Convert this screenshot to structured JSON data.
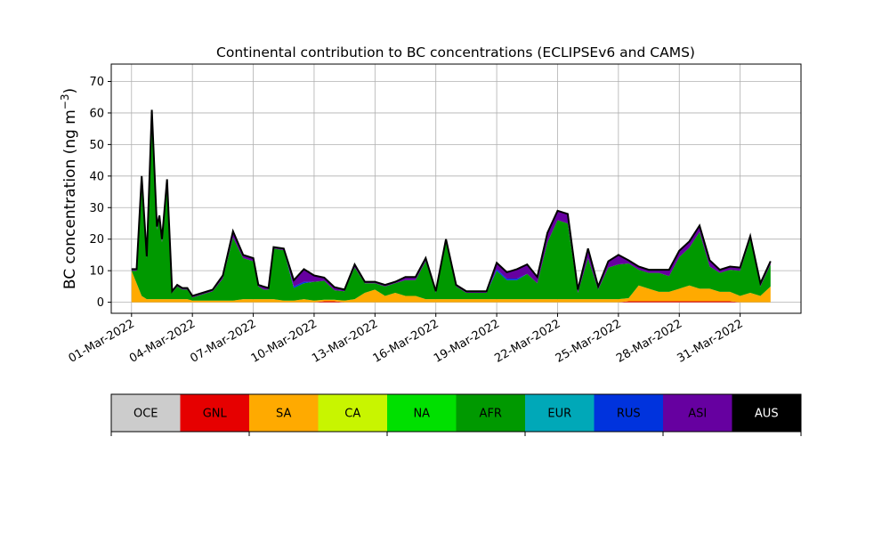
{
  "chart_data": {
    "type": "area",
    "title": "Continental contribution to BC concentrations (ECLIPSEv6 and CAMS)",
    "ylabel": "BC concentration (ng m",
    "ylabel_sup": "−3",
    "ylabel_close": ")",
    "xlabel": "",
    "ylim": [
      -3.5,
      75.5
    ],
    "yticks": [
      0,
      10,
      20,
      30,
      40,
      50,
      60,
      70
    ],
    "xlim": [
      "2022-02-28T00:00",
      "2022-04-03T00:00"
    ],
    "xticks": [
      {
        "date": "2022-03-01",
        "label": "01-Mar-2022"
      },
      {
        "date": "2022-03-04",
        "label": "04-Mar-2022"
      },
      {
        "date": "2022-03-07",
        "label": "07-Mar-2022"
      },
      {
        "date": "2022-03-10",
        "label": "10-Mar-2022"
      },
      {
        "date": "2022-03-13",
        "label": "13-Mar-2022"
      },
      {
        "date": "2022-03-16",
        "label": "16-Mar-2022"
      },
      {
        "date": "2022-03-19",
        "label": "19-Mar-2022"
      },
      {
        "date": "2022-03-22",
        "label": "22-Mar-2022"
      },
      {
        "date": "2022-03-25",
        "label": "25-Mar-2022"
      },
      {
        "date": "2022-03-28",
        "label": "28-Mar-2022"
      },
      {
        "date": "2022-03-31",
        "label": "31-Mar-2022"
      }
    ],
    "grid": true,
    "legend_position": "bottom colorbar",
    "x": [
      "2022-03-01T00:00",
      "2022-03-01T06:00",
      "2022-03-01T12:00",
      "2022-03-01T18:00",
      "2022-03-02T00:00",
      "2022-03-02T06:00",
      "2022-03-02T09:00",
      "2022-03-02T12:00",
      "2022-03-02T18:00",
      "2022-03-03T00:00",
      "2022-03-03T06:00",
      "2022-03-03T12:00",
      "2022-03-03T18:00",
      "2022-03-04T00:00",
      "2022-03-04T12:00",
      "2022-03-05T00:00",
      "2022-03-05T12:00",
      "2022-03-06T00:00",
      "2022-03-06T12:00",
      "2022-03-07T00:00",
      "2022-03-07T06:00",
      "2022-03-07T12:00",
      "2022-03-07T18:00",
      "2022-03-08T00:00",
      "2022-03-08T12:00",
      "2022-03-09T00:00",
      "2022-03-09T12:00",
      "2022-03-10T00:00",
      "2022-03-10T12:00",
      "2022-03-11T00:00",
      "2022-03-11T12:00",
      "2022-03-12T00:00",
      "2022-03-12T12:00",
      "2022-03-13T00:00",
      "2022-03-13T12:00",
      "2022-03-14T00:00",
      "2022-03-14T12:00",
      "2022-03-15T00:00",
      "2022-03-15T12:00",
      "2022-03-16T00:00",
      "2022-03-16T12:00",
      "2022-03-17T00:00",
      "2022-03-17T12:00",
      "2022-03-18T00:00",
      "2022-03-18T12:00",
      "2022-03-19T00:00",
      "2022-03-19T12:00",
      "2022-03-20T00:00",
      "2022-03-20T12:00",
      "2022-03-21T00:00",
      "2022-03-21T12:00",
      "2022-03-22T00:00",
      "2022-03-22T12:00",
      "2022-03-23T00:00",
      "2022-03-23T12:00",
      "2022-03-24T00:00",
      "2022-03-24T12:00",
      "2022-03-25T00:00",
      "2022-03-25T12:00",
      "2022-03-26T00:00",
      "2022-03-26T12:00",
      "2022-03-27T00:00",
      "2022-03-27T12:00",
      "2022-03-28T00:00",
      "2022-03-28T12:00",
      "2022-03-29T00:00",
      "2022-03-29T12:00",
      "2022-03-30T00:00",
      "2022-03-30T12:00",
      "2022-03-31T00:00",
      "2022-03-31T12:00",
      "2022-04-01T00:00",
      "2022-04-01T12:00"
    ],
    "series": [
      {
        "name": "OCE",
        "color": "#cccccc",
        "values": [
          0,
          0,
          0,
          0,
          0,
          0,
          0,
          0,
          0,
          0,
          0,
          0,
          0,
          0,
          0,
          0,
          0,
          0,
          0,
          0,
          0,
          0,
          0,
          0,
          0,
          0,
          0,
          0,
          0,
          0,
          0,
          0,
          0,
          0,
          0,
          0,
          0,
          0,
          0,
          0,
          0,
          0,
          0,
          0,
          0,
          0,
          0,
          0,
          0,
          0,
          0,
          0,
          0,
          0,
          0,
          0,
          0,
          0,
          0,
          0,
          0,
          0,
          0,
          0,
          0,
          0,
          0,
          0,
          0,
          0,
          0,
          0,
          0
        ]
      },
      {
        "name": "GNL",
        "color": "#e60000",
        "values": [
          0,
          0,
          0,
          0,
          0,
          0,
          0,
          0,
          0,
          0,
          0,
          0,
          0,
          0,
          0,
          0,
          0,
          0,
          0,
          0,
          0,
          0,
          0,
          0,
          0,
          0,
          0,
          0,
          0.3,
          0.3,
          0,
          0,
          0,
          0,
          0,
          0,
          0,
          0,
          0,
          0,
          0,
          0,
          0,
          0,
          0,
          0,
          0,
          0,
          0,
          0,
          0,
          0,
          0,
          0,
          0,
          0,
          0,
          0,
          0.3,
          0.3,
          0.3,
          0.3,
          0.3,
          0.3,
          0.3,
          0.3,
          0.3,
          0.3,
          0.3,
          0,
          0,
          0,
          0
        ]
      },
      {
        "name": "SA",
        "color": "#ffaa00",
        "values": [
          10,
          6,
          2,
          1,
          1,
          1,
          1,
          1,
          1,
          1,
          1,
          1,
          1,
          0.5,
          0.5,
          0.5,
          0.5,
          0.5,
          1,
          1,
          1,
          1,
          1,
          1,
          0.5,
          0.5,
          1,
          0.5,
          0.5,
          0.5,
          0.5,
          1,
          3,
          4,
          2,
          3,
          2,
          2,
          1,
          1,
          1,
          1,
          1,
          1,
          1,
          1,
          1,
          1,
          1,
          1,
          1,
          1,
          1,
          1,
          1,
          1,
          1,
          1,
          1,
          5,
          4,
          3,
          3,
          4,
          5,
          4,
          4,
          3,
          3,
          2,
          3,
          2,
          5
        ]
      },
      {
        "name": "CA",
        "color": "#c8f500",
        "values": [
          0,
          0,
          0,
          0,
          0,
          0,
          0,
          0,
          0,
          0,
          0,
          0,
          0,
          0,
          0,
          0,
          0,
          0,
          0,
          0,
          0,
          0,
          0,
          0,
          0,
          0,
          0,
          0,
          0,
          0,
          0,
          0,
          0,
          0,
          0,
          0,
          0,
          0,
          0,
          0,
          0,
          0,
          0,
          0,
          0,
          0,
          0,
          0,
          0,
          0,
          0,
          0,
          0,
          0,
          0,
          0,
          0,
          0,
          0,
          0,
          0,
          0,
          0,
          0,
          0,
          0,
          0,
          0,
          0,
          0,
          0,
          0,
          0
        ]
      },
      {
        "name": "NA",
        "color": "#00e000",
        "values": [
          0,
          0,
          0,
          0,
          0,
          0,
          0,
          0,
          0,
          0,
          0,
          0,
          0,
          0,
          0,
          0,
          0,
          0,
          0,
          0,
          0,
          0,
          0,
          0,
          0,
          0,
          0,
          0,
          0,
          0,
          0,
          0,
          0,
          0,
          0,
          0,
          0,
          0,
          0,
          0,
          0,
          0,
          0,
          0,
          0,
          0,
          0,
          0,
          0,
          0,
          0,
          0,
          0,
          0,
          0,
          0,
          0,
          0,
          0,
          0,
          0,
          0,
          0,
          0,
          0,
          0,
          0,
          0,
          0,
          0,
          0,
          0,
          0
        ]
      },
      {
        "name": "AFR",
        "color": "#009900",
        "values": [
          0,
          4,
          37,
          13,
          58,
          22,
          26,
          18,
          36,
          2,
          4,
          3,
          3,
          1,
          2,
          3,
          7,
          20,
          13,
          12,
          4,
          3,
          3,
          16,
          16,
          4,
          5,
          6,
          6,
          3,
          3,
          10,
          3,
          2,
          3,
          3,
          5,
          5,
          12,
          2,
          18,
          4,
          2,
          2,
          2,
          9,
          6,
          6,
          8,
          5,
          18,
          25,
          24,
          2,
          13,
          3,
          10,
          11,
          11,
          5,
          5,
          6,
          5,
          10,
          12,
          18,
          7,
          6,
          7,
          8,
          17,
          3,
          7
        ]
      },
      {
        "name": "EUR",
        "color": "#00a8b8",
        "values": [
          0,
          0,
          0,
          0,
          0,
          0,
          0,
          0,
          0,
          0,
          0,
          0,
          0,
          0,
          0,
          0,
          0,
          0,
          0,
          0,
          0,
          0,
          0,
          0,
          0,
          0,
          0,
          0,
          0,
          0,
          0,
          0,
          0,
          0,
          0,
          0,
          0,
          0,
          0,
          0,
          0,
          0,
          0,
          0,
          0,
          0,
          0,
          0,
          0,
          0,
          0,
          0,
          0,
          0,
          0,
          0,
          0,
          0,
          0,
          0,
          0,
          0,
          0,
          0,
          0,
          0,
          0,
          0,
          0,
          0,
          0,
          0,
          0
        ]
      },
      {
        "name": "RUS",
        "color": "#0033dd",
        "values": [
          0,
          0,
          0,
          0,
          0,
          0,
          0,
          0,
          0,
          0,
          0,
          0,
          0,
          0,
          0,
          0,
          0,
          0,
          0,
          0,
          0,
          0,
          0,
          0,
          0,
          0.5,
          0.5,
          0,
          0,
          0,
          0,
          0,
          0,
          0,
          0,
          0,
          0,
          0,
          0,
          0,
          0,
          0,
          0,
          0,
          0,
          0.5,
          0.5,
          0.5,
          0,
          0,
          0,
          0,
          0,
          0,
          0,
          0,
          0,
          0,
          0,
          0,
          0,
          0,
          0,
          0,
          0,
          0,
          0,
          0,
          0,
          0,
          0,
          0,
          0
        ]
      },
      {
        "name": "ASI",
        "color": "#6600a0",
        "values": [
          0.5,
          0.5,
          1,
          0.5,
          2,
          1,
          0.5,
          1,
          2,
          0.5,
          0.5,
          0.5,
          0.5,
          0.5,
          0.5,
          0.5,
          1,
          2,
          1,
          1,
          0.5,
          1,
          0.5,
          0.5,
          0.5,
          2,
          4,
          2,
          1,
          1,
          0.5,
          1,
          0.5,
          0.5,
          0.5,
          0.5,
          1,
          1,
          1,
          0.5,
          1,
          0.5,
          0.5,
          0.5,
          0.5,
          2,
          2,
          3,
          3,
          2,
          3,
          3,
          3,
          1,
          3,
          1,
          2,
          3,
          1,
          1,
          1,
          1,
          2,
          2,
          2,
          2,
          2,
          1,
          1,
          1,
          1,
          1,
          1
        ]
      },
      {
        "name": "AUS",
        "color": "#000000",
        "values": [
          0,
          0,
          0,
          0,
          0,
          0,
          0,
          0,
          0,
          0,
          0,
          0,
          0,
          0,
          0,
          0,
          0,
          0,
          0,
          0,
          0,
          0,
          0,
          0,
          0,
          0,
          0,
          0,
          0,
          0,
          0,
          0,
          0,
          0,
          0,
          0,
          0,
          0,
          0,
          0,
          0,
          0,
          0,
          0,
          0,
          0,
          0,
          0,
          0,
          0,
          0,
          0,
          0,
          0,
          0,
          0,
          0,
          0,
          0,
          0,
          0,
          0,
          0,
          0,
          0,
          0,
          0,
          0,
          0,
          0,
          0,
          0,
          0
        ]
      }
    ],
    "colorbar": [
      {
        "label": "OCE",
        "color": "#cccccc",
        "text_color": "#000000"
      },
      {
        "label": "GNL",
        "color": "#e60000",
        "text_color": "#000000"
      },
      {
        "label": "SA",
        "color": "#ffaa00",
        "text_color": "#000000"
      },
      {
        "label": "CA",
        "color": "#c8f500",
        "text_color": "#000000"
      },
      {
        "label": "NA",
        "color": "#00e000",
        "text_color": "#000000"
      },
      {
        "label": "AFR",
        "color": "#009900",
        "text_color": "#000000"
      },
      {
        "label": "EUR",
        "color": "#00a8b8",
        "text_color": "#000000"
      },
      {
        "label": "RUS",
        "color": "#0033dd",
        "text_color": "#000000"
      },
      {
        "label": "ASI",
        "color": "#6600a0",
        "text_color": "#000000"
      },
      {
        "label": "AUS",
        "color": "#000000",
        "text_color": "#ffffff"
      }
    ]
  }
}
